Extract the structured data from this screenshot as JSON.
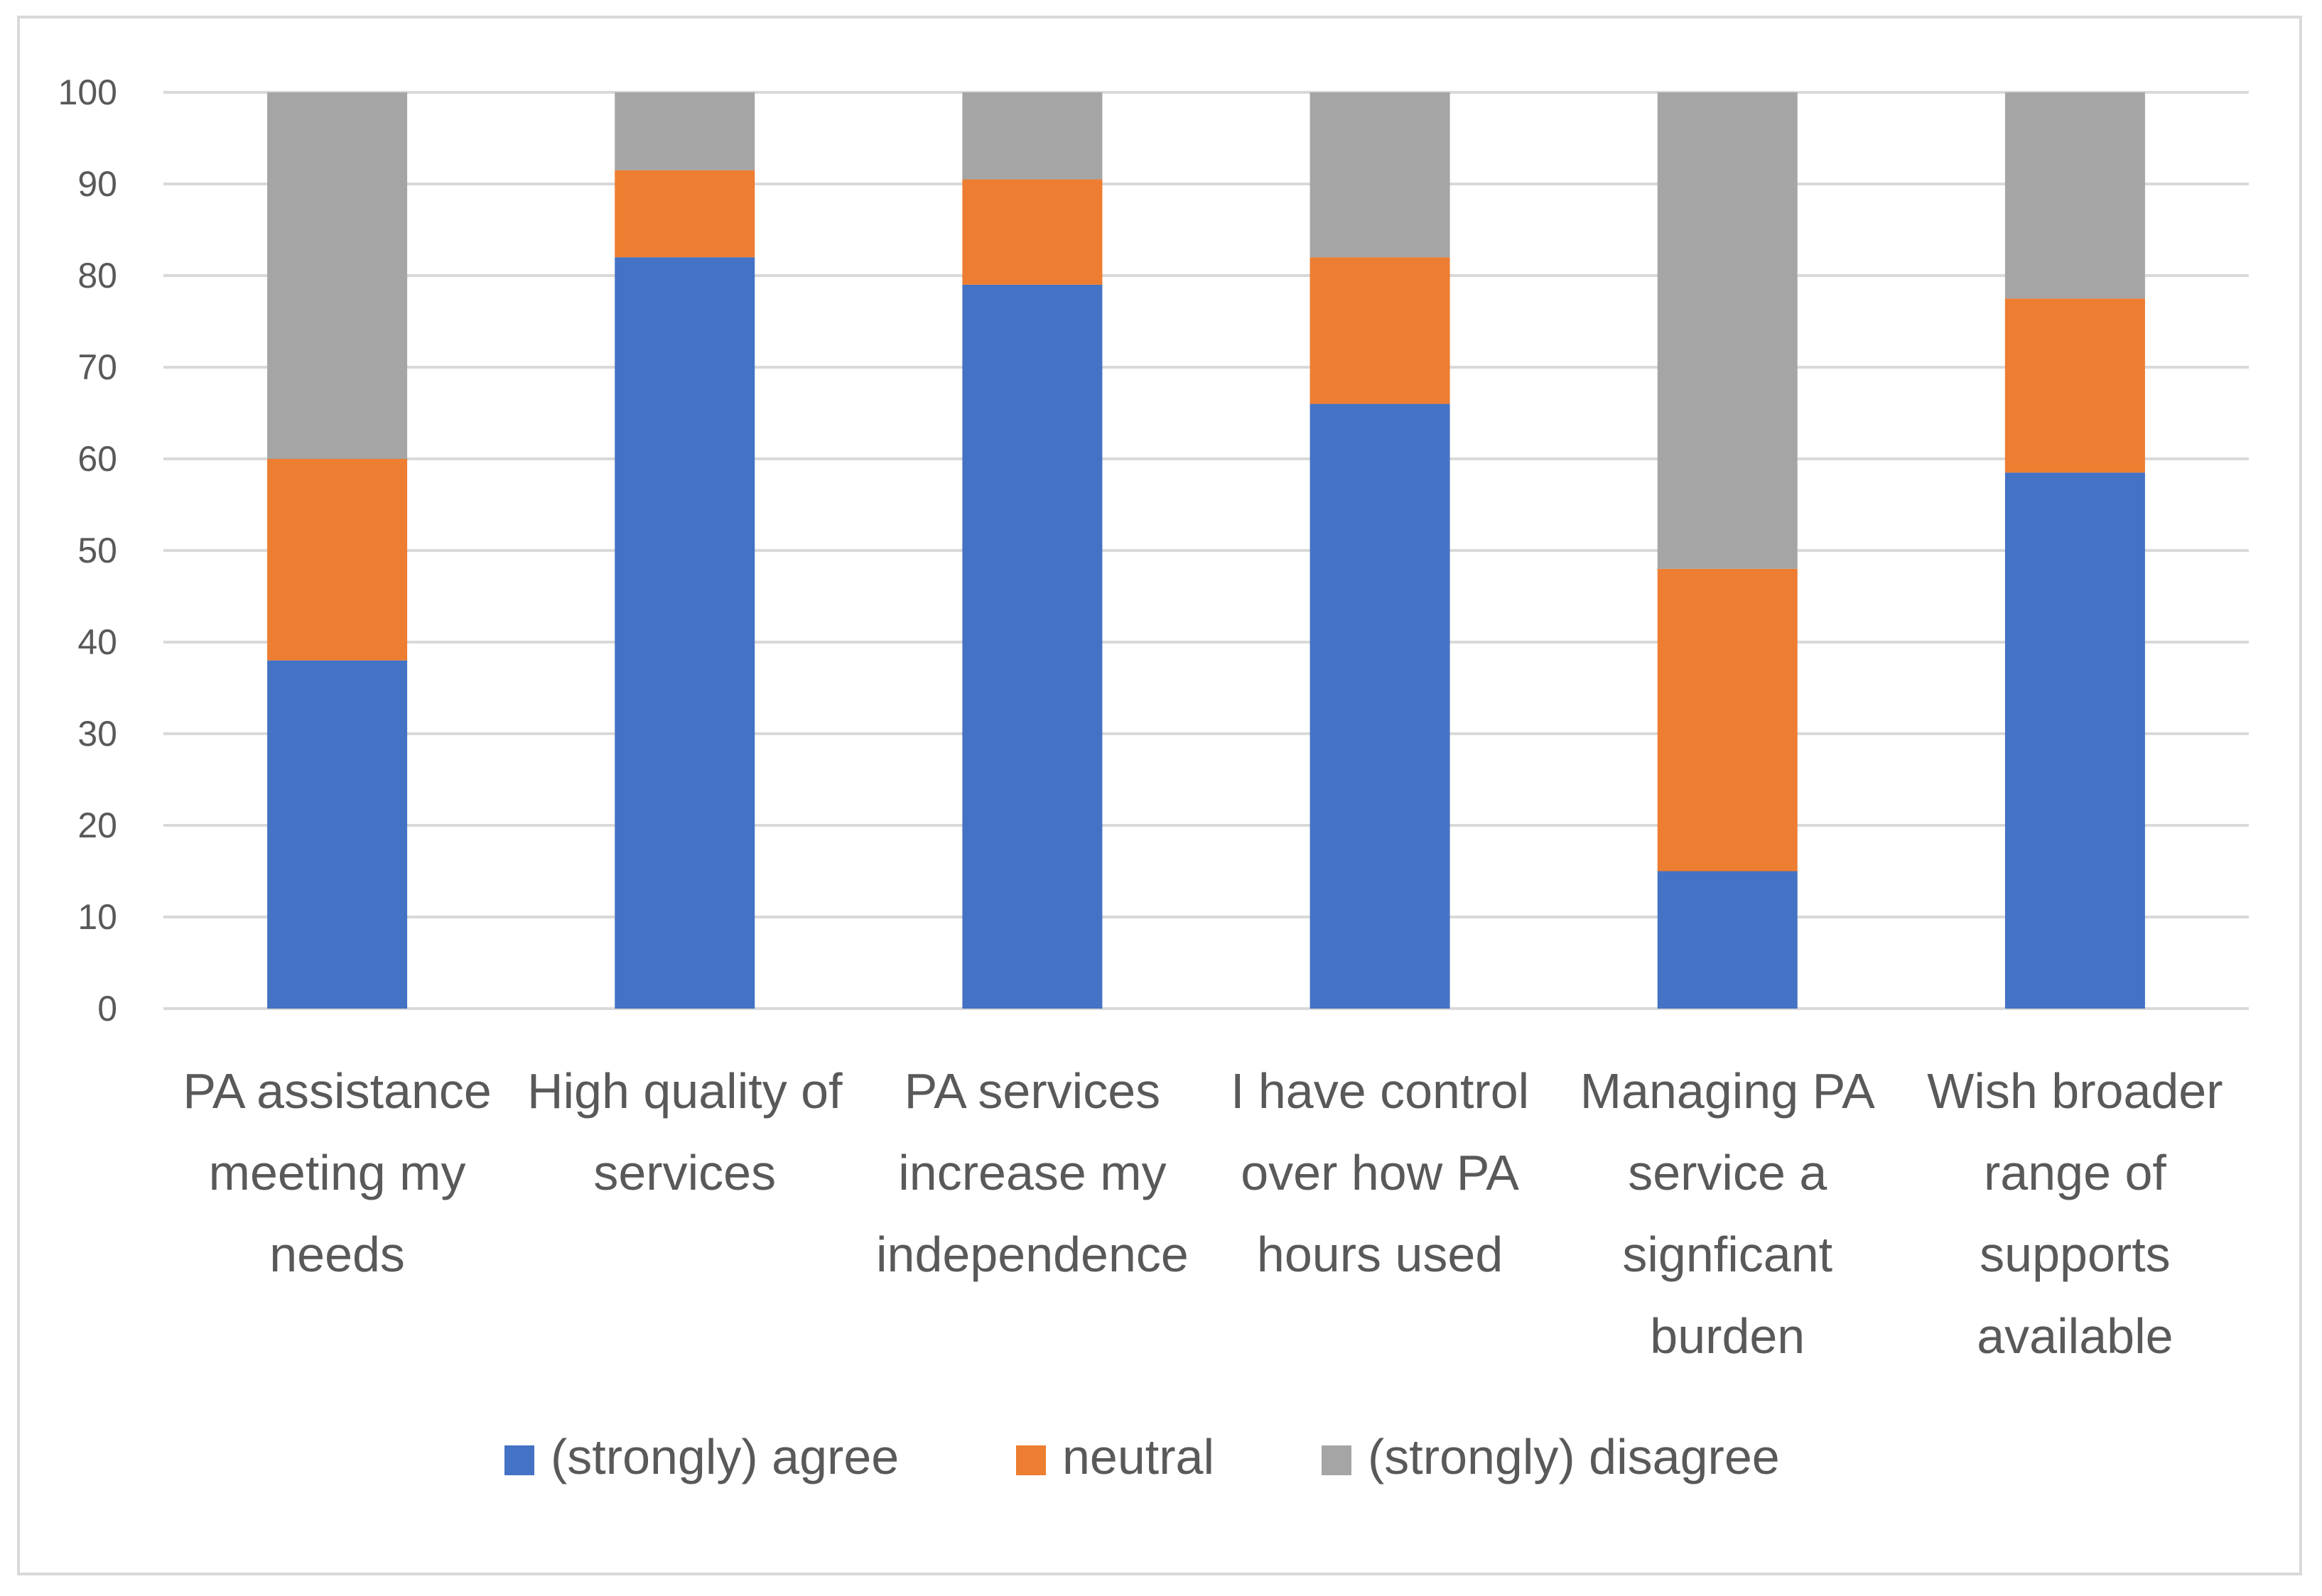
{
  "chart_data": {
    "type": "bar",
    "stacked": true,
    "title": "",
    "xlabel": "",
    "ylabel": "",
    "ylim": [
      0,
      100
    ],
    "yticks": [
      0,
      10,
      20,
      30,
      40,
      50,
      60,
      70,
      80,
      90,
      100
    ],
    "grid": true,
    "legend_position": "bottom",
    "categories": [
      [
        "PA assistance",
        "meeting my",
        "needs"
      ],
      [
        "High quality of",
        "services"
      ],
      [
        "PA services",
        "increase my",
        "independence"
      ],
      [
        "I have control",
        "over how PA",
        "hours used"
      ],
      [
        "Managing PA",
        "service a",
        "signficant",
        "burden"
      ],
      [
        "Wish broader",
        "range of",
        "supports",
        "available"
      ]
    ],
    "series": [
      {
        "name": "(strongly) agree",
        "color": "#4472c4",
        "values": [
          38,
          82,
          79,
          66,
          15,
          58.5
        ]
      },
      {
        "name": "neutral",
        "color": "#ed7d31",
        "values": [
          22,
          9.5,
          11.5,
          16,
          33,
          19
        ]
      },
      {
        "name": "(strongly) disagree",
        "color": "#a5a5a5",
        "values": [
          40,
          8.5,
          9.5,
          18,
          52,
          22.5
        ]
      }
    ]
  }
}
